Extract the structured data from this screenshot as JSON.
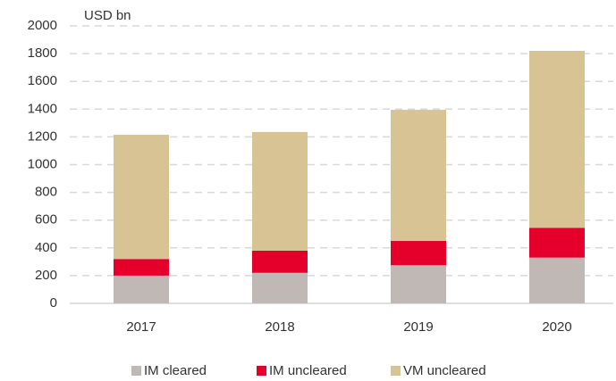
{
  "chart_data": {
    "type": "bar",
    "stacked": true,
    "unit_label": "USD bn",
    "categories": [
      "2017",
      "2018",
      "2019",
      "2020"
    ],
    "series": [
      {
        "name": "IM cleared",
        "color": "#bfb8b5",
        "values": [
          200,
          220,
          275,
          330
        ]
      },
      {
        "name": "IM uncleared",
        "color": "#e4002b",
        "values": [
          120,
          160,
          175,
          215
        ]
      },
      {
        "name": "VM uncleared",
        "color": "#d7c394",
        "values": [
          895,
          855,
          945,
          1275
        ]
      }
    ],
    "ylim": [
      0,
      2000
    ],
    "yticks": [
      0,
      200,
      400,
      600,
      800,
      1000,
      1200,
      1400,
      1600,
      1800,
      2000
    ],
    "grid": true,
    "legend": "bottom"
  }
}
